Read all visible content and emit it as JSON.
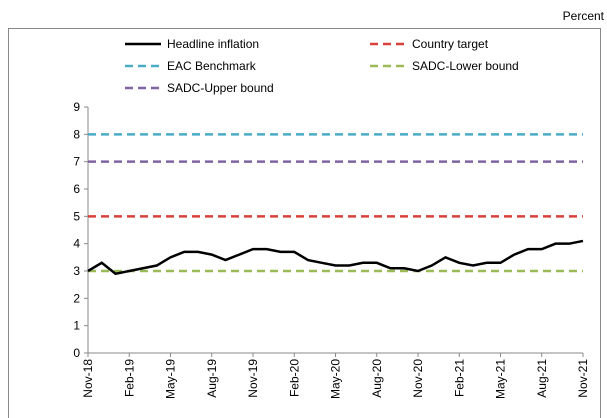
{
  "chart_data": {
    "type": "line",
    "y_unit_label": "Percent",
    "categories": [
      "Nov-18",
      null,
      null,
      "Feb-19",
      null,
      null,
      "May-19",
      null,
      null,
      "Aug-19",
      null,
      null,
      "Nov-19",
      null,
      null,
      "Feb-20",
      null,
      null,
      "May-20",
      null,
      null,
      "Aug-20",
      null,
      null,
      "Nov-20",
      null,
      null,
      "Feb-21",
      null,
      null,
      "May-21",
      null,
      null,
      "Aug-21",
      null,
      null,
      "Nov-21"
    ],
    "series": [
      {
        "name": "Headline inflation",
        "color": "#000000",
        "style": "solid",
        "values": [
          3.0,
          3.3,
          2.9,
          3.0,
          3.1,
          3.2,
          3.5,
          3.7,
          3.7,
          3.6,
          3.4,
          3.6,
          3.8,
          3.8,
          3.7,
          3.7,
          3.4,
          3.3,
          3.2,
          3.2,
          3.3,
          3.3,
          3.1,
          3.1,
          3.0,
          3.2,
          3.5,
          3.3,
          3.2,
          3.3,
          3.3,
          3.6,
          3.8,
          3.8,
          4.0,
          4.0,
          4.1
        ]
      },
      {
        "name": "Country target",
        "color": "#d9413b",
        "style": "dashed",
        "values": [
          5,
          5,
          5,
          5,
          5,
          5,
          5,
          5,
          5,
          5,
          5,
          5,
          5,
          5,
          5,
          5,
          5,
          5,
          5,
          5,
          5,
          5,
          5,
          5,
          5,
          5,
          5,
          5,
          5,
          5,
          5,
          5,
          5,
          5,
          5,
          5,
          5
        ]
      },
      {
        "name": "EAC Benchmark",
        "color": "#4bacc6",
        "style": "dashed",
        "values": [
          8,
          8,
          8,
          8,
          8,
          8,
          8,
          8,
          8,
          8,
          8,
          8,
          8,
          8,
          8,
          8,
          8,
          8,
          8,
          8,
          8,
          8,
          8,
          8,
          8,
          8,
          8,
          8,
          8,
          8,
          8,
          8,
          8,
          8,
          8,
          8,
          8
        ]
      },
      {
        "name": "SADC-Lower bound",
        "color": "#9bbb59",
        "style": "dashed",
        "values": [
          3,
          3,
          3,
          3,
          3,
          3,
          3,
          3,
          3,
          3,
          3,
          3,
          3,
          3,
          3,
          3,
          3,
          3,
          3,
          3,
          3,
          3,
          3,
          3,
          3,
          3,
          3,
          3,
          3,
          3,
          3,
          3,
          3,
          3,
          3,
          3,
          3
        ]
      },
      {
        "name": "SADC-Upper bound",
        "color": "#8064a2",
        "style": "dashed",
        "values": [
          7,
          7,
          7,
          7,
          7,
          7,
          7,
          7,
          7,
          7,
          7,
          7,
          7,
          7,
          7,
          7,
          7,
          7,
          7,
          7,
          7,
          7,
          7,
          7,
          7,
          7,
          7,
          7,
          7,
          7,
          7,
          7,
          7,
          7,
          7,
          7,
          7
        ]
      }
    ],
    "ylim": [
      0,
      9
    ],
    "yticks": [
      0,
      1,
      2,
      3,
      4,
      5,
      6,
      7,
      8,
      9
    ],
    "grid": false
  }
}
